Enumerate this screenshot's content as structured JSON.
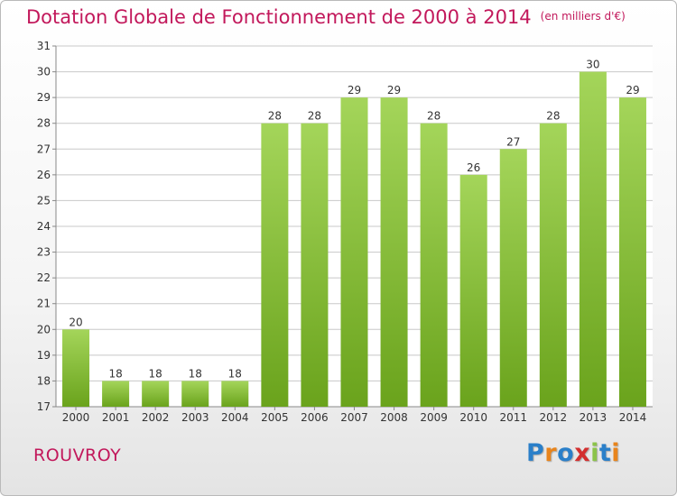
{
  "header": {
    "title": "Dotation Globale de Fonctionnement de 2000 à 2014",
    "unit": "(en milliers d'€)"
  },
  "footer": {
    "place": "ROUVROY"
  },
  "logo": {
    "letters": [
      {
        "ch": "P",
        "color": "#2a7fc9"
      },
      {
        "ch": "r",
        "color": "#e8841c"
      },
      {
        "ch": "o",
        "color": "#2a7fc9"
      },
      {
        "ch": "x",
        "color": "#d32f2f"
      },
      {
        "ch": "i",
        "color": "#8bc34a"
      },
      {
        "ch": "t",
        "color": "#2a7fc9"
      },
      {
        "ch": "i",
        "color": "#e8841c"
      }
    ]
  },
  "colors": {
    "title": "#c2185b",
    "bar_top": "#a4d55a",
    "bar_bottom": "#6aa31c",
    "grid": "#c8c8c8",
    "axis_text": "#333333"
  },
  "chart_data": {
    "type": "bar",
    "title": "Dotation Globale de Fonctionnement de 2000 à 2014",
    "subtitle": "(en milliers d'€)",
    "xlabel": "",
    "ylabel": "",
    "categories": [
      "2000",
      "2001",
      "2002",
      "2003",
      "2004",
      "2005",
      "2006",
      "2007",
      "2008",
      "2009",
      "2010",
      "2011",
      "2012",
      "2013",
      "2014"
    ],
    "values": [
      20,
      18,
      18,
      18,
      18,
      28,
      28,
      29,
      29,
      28,
      26,
      27,
      28,
      30,
      29
    ],
    "data_labels": [
      "20",
      "18",
      "18",
      "18",
      "18",
      "28",
      "28",
      "29",
      "29",
      "28",
      "26",
      "27",
      "28",
      "30",
      "29"
    ],
    "ylim": [
      17,
      31
    ],
    "yticks": [
      17,
      18,
      19,
      20,
      21,
      22,
      23,
      24,
      25,
      26,
      27,
      28,
      29,
      30,
      31
    ],
    "grid": true,
    "legend": "none"
  }
}
